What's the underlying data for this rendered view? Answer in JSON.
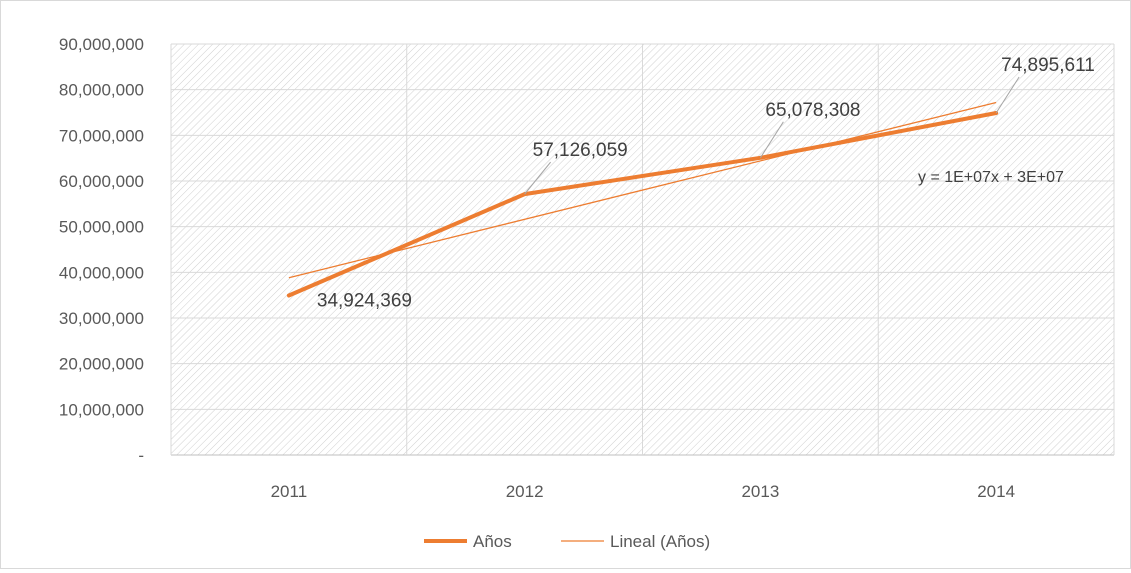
{
  "colors": {
    "series": "#ED7D31",
    "trend": "#ED7D31",
    "axis_text": "#595959",
    "label_text": "#404040",
    "leader": "#a6a6a6",
    "hatch": "#d0d0d0",
    "gridline": "#d9d9d9"
  },
  "chart_data": {
    "type": "line",
    "title": "",
    "xlabel": "",
    "ylabel": "",
    "categories": [
      "2011",
      "2012",
      "2013",
      "2014"
    ],
    "series": [
      {
        "name": "Años",
        "values": [
          34924369,
          57126059,
          65078308,
          74895611
        ]
      }
    ],
    "trendline": {
      "name": "Lineal (Años)",
      "type": "linear",
      "equation": "y = 1E+07x + 3E+07"
    },
    "data_labels": [
      "34,924,369",
      "57,126,059",
      "65,078,308",
      "74,895,611"
    ],
    "ylim": [
      0,
      90000000
    ],
    "yticks": [
      0,
      10000000,
      20000000,
      30000000,
      40000000,
      50000000,
      60000000,
      70000000,
      80000000,
      90000000
    ],
    "ytick_labels": [
      "-",
      "10,000,000",
      "20,000,000",
      "30,000,000",
      "40,000,000",
      "50,000,000",
      "60,000,000",
      "70,000,000",
      "80,000,000",
      "90,000,000"
    ],
    "grid": true,
    "plot_background": "diagonal hatch",
    "legend": {
      "position": "bottom",
      "entries": [
        "Años",
        "Lineal (Años)"
      ]
    }
  }
}
